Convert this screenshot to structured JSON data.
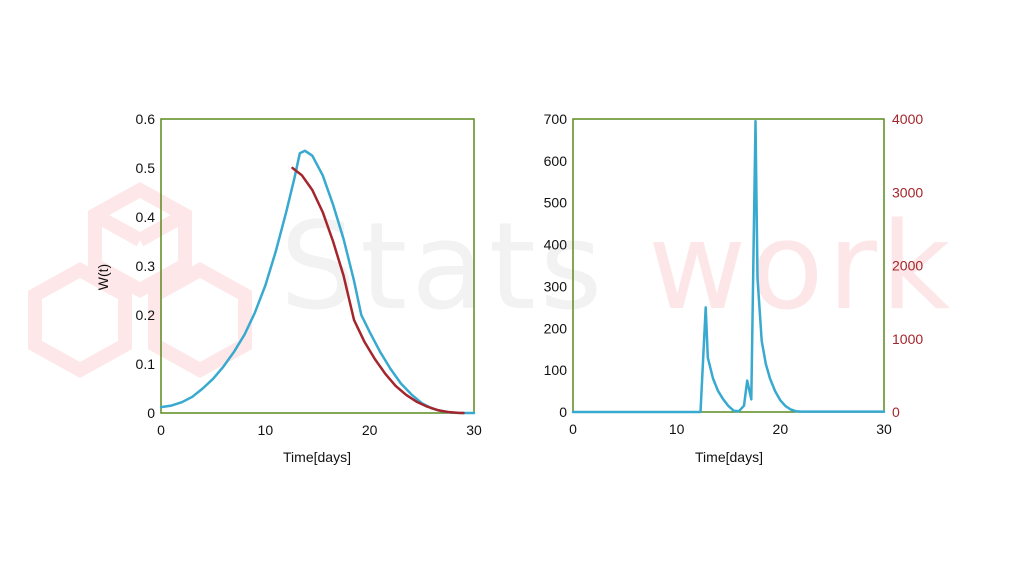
{
  "watermark": {
    "text_left": "Stats",
    "text_right": "work"
  },
  "colors": {
    "frame": "#5b8a1e",
    "blue": "#38a9cf",
    "red": "#a4262c",
    "watermark_light": "#f1f1f1",
    "watermark_pink": "#fde9ea"
  },
  "chart_data": [
    {
      "type": "line",
      "title": "",
      "xlabel": "Time[days]",
      "ylabel": "W(t)",
      "xlim": [
        0,
        30
      ],
      "ylim": [
        0,
        0.6
      ],
      "xticks": [
        0,
        10,
        20,
        30
      ],
      "xtick_labels": [
        "0",
        "10",
        "20",
        "30"
      ],
      "yticks": [
        0,
        0.1,
        0.2,
        0.3,
        0.4,
        0.5,
        0.6
      ],
      "ytick_labels": [
        "0",
        "0.1",
        "0.2",
        "0.3",
        "0.4",
        "0.5",
        "0.6"
      ],
      "series": [
        {
          "name": "blue",
          "color": "#38a9cf",
          "x": [
            0,
            1,
            2,
            3,
            4,
            5,
            6,
            7,
            8,
            9,
            10,
            11,
            12,
            12.8,
            13.3,
            13.8,
            14.5,
            15.5,
            16.5,
            17.5,
            18.5,
            19.2,
            20,
            21,
            22,
            23,
            24,
            25,
            26,
            27,
            28,
            29,
            30
          ],
          "y": [
            0.012,
            0.015,
            0.022,
            0.033,
            0.05,
            0.07,
            0.095,
            0.125,
            0.16,
            0.205,
            0.26,
            0.33,
            0.41,
            0.48,
            0.53,
            0.535,
            0.525,
            0.485,
            0.425,
            0.355,
            0.27,
            0.2,
            0.165,
            0.125,
            0.09,
            0.06,
            0.038,
            0.02,
            0.009,
            0.003,
            0.0005,
            0,
            0
          ]
        },
        {
          "name": "red",
          "color": "#a4262c",
          "x": [
            12.6,
            13.5,
            14.5,
            15.5,
            16.5,
            17.5,
            18.5,
            19.5,
            20.5,
            21.5,
            22.5,
            23.5,
            24.5,
            25.5,
            26.5,
            27.5,
            28.5,
            29
          ],
          "y": [
            0.5,
            0.485,
            0.455,
            0.41,
            0.35,
            0.28,
            0.19,
            0.145,
            0.11,
            0.08,
            0.055,
            0.037,
            0.023,
            0.013,
            0.006,
            0.002,
            0.0003,
            0
          ]
        }
      ]
    },
    {
      "type": "line",
      "title": "",
      "xlabel": "Time[days]",
      "ylabel": "",
      "xlim": [
        0,
        30
      ],
      "ylim": [
        0,
        700
      ],
      "xticks": [
        0,
        10,
        20,
        30
      ],
      "xtick_labels": [
        "0",
        "10",
        "20",
        "30"
      ],
      "yticks": [
        0,
        100,
        200,
        300,
        400,
        500,
        600,
        700
      ],
      "ytick_labels": [
        "0",
        "100",
        "200",
        "300",
        "400",
        "500",
        "600",
        "700"
      ],
      "y2lim": [
        0,
        4000
      ],
      "y2ticks": [
        0,
        1000,
        2000,
        3000,
        4000
      ],
      "y2tick_labels": [
        "0",
        "1000",
        "2000",
        "3000",
        "4000"
      ],
      "series": [
        {
          "name": "blue",
          "color": "#38a9cf",
          "x": [
            0,
            12.3,
            12.8,
            13,
            13.5,
            14,
            14.5,
            15,
            15.5,
            16,
            16.5,
            16.8,
            17.2,
            17.6,
            17.8,
            18.2,
            18.6,
            19,
            19.5,
            20,
            20.5,
            21,
            21.5,
            22,
            24,
            26,
            28,
            30
          ],
          "y": [
            0,
            0,
            250,
            130,
            80,
            50,
            30,
            14,
            3,
            2,
            15,
            75,
            30,
            695,
            320,
            170,
            115,
            80,
            50,
            28,
            14,
            6,
            2,
            1,
            1,
            1,
            1,
            1
          ]
        }
      ]
    }
  ]
}
